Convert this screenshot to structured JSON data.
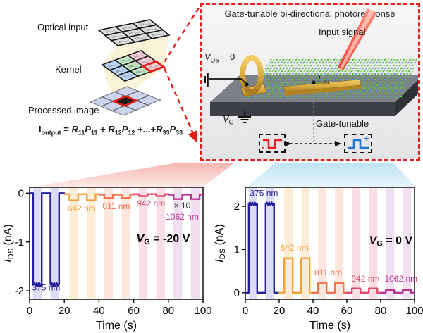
{
  "colors": {
    "accent_red": "#e3211a",
    "gold": "#d9a93e",
    "substrate_top": "#7c8088",
    "substrate_front": "#3c3f45",
    "wedge_pink": "#f5a9a4",
    "wedge_blue": "#b7e0f2",
    "beam_red": "#ee3224"
  },
  "conv": {
    "labels": {
      "optical_input": "Optical input",
      "kernel": "Kernel",
      "processed_image": "Processed image"
    },
    "equation": [
      [
        "n",
        "I"
      ],
      [
        "s",
        "output"
      ],
      [
        "n",
        " = "
      ],
      [
        "bi",
        "R"
      ],
      [
        "s",
        "11"
      ],
      [
        "bi",
        "P"
      ],
      [
        "s",
        "11"
      ],
      [
        "n",
        " + "
      ],
      [
        "bi",
        "R"
      ],
      [
        "s",
        "12"
      ],
      [
        "bi",
        "P"
      ],
      [
        "s",
        "12"
      ],
      [
        "n",
        " +...+"
      ],
      [
        "bi",
        "R"
      ],
      [
        "s",
        "33"
      ],
      [
        "bi",
        "P"
      ],
      [
        "s",
        "33"
      ]
    ],
    "grids": {
      "optical": {
        "cells": [
          [
            "P₁₁",
            "P₁₂",
            "P₁₃"
          ],
          [
            "P₂₁",
            "P₂₂",
            "P₂₃"
          ],
          [
            "P₃₁",
            "P₃₂",
            "P₃₃"
          ]
        ],
        "fill": "#dcdcdc",
        "text": "#6f6f6f"
      },
      "kernel": {
        "cells": [
          [
            "R₁₁",
            "R₁₂",
            "R₁₃"
          ],
          [
            "R₂₁",
            "R₂₂",
            "R₂₃"
          ],
          [
            "R₃₁",
            "R₃₂",
            "R₃₃"
          ]
        ],
        "col_fills": [
          "#b9d5f3",
          "#c2e5c1",
          "#f6cdd9"
        ],
        "text": "#6f6f6f",
        "highlight_cell": [
          2,
          2
        ],
        "highlight_color": "#e3211a"
      },
      "processed": {
        "fill": "#cdd5ee",
        "center_fill": "#1c1c1c",
        "center_stroke": "#e3211a"
      }
    }
  },
  "device_box": {
    "title": "Gate-tunable bi-directional photoresponse",
    "input_signal": "Input signal",
    "vds": {
      "sym": "V",
      "sub": "DS",
      "rest": " = 0"
    },
    "ids": {
      "sym": "I",
      "sub": "DS",
      "rest": ""
    },
    "vg": {
      "sym": "V",
      "sub": "G",
      "rest": ""
    },
    "gate_tunable": "Gate-tunable",
    "pulse_negative_sign": "-",
    "pulse_positive_sign": "+",
    "pulse_negative_color": "#e8211d",
    "pulse_positive_color": "#1e78d2"
  },
  "chart_data": [
    {
      "type": "line",
      "panel": "left",
      "xlabel": "Time (s)",
      "ylabel": {
        "sym": "I",
        "sub": "DS",
        "rest": " (nA)"
      },
      "gate": {
        "sym": "V",
        "sub": "G",
        "rest": " = -20 V",
        "pos": [
          77,
          -1.0
        ]
      },
      "xlim": [
        0,
        100
      ],
      "ylim": [
        -2.17,
        0.12
      ],
      "xticks": [
        0,
        20,
        40,
        60,
        80,
        100
      ],
      "yticks": [
        0,
        -1,
        -2
      ],
      "series": [
        {
          "name": "375 nm",
          "color": "#23209e",
          "stripe": "#dddcf6",
          "window": [
            0,
            20
          ],
          "pulses": [
            [
              2,
              7
            ],
            [
              12,
              17
            ]
          ],
          "base": 0,
          "peak": -1.87,
          "noise": 0.035,
          "label_pos": [
            9.5,
            -1.99
          ]
        },
        {
          "name": "642 nm",
          "color": "#f8a13b",
          "stripe": "#fdecd6",
          "window": [
            20,
            40
          ],
          "pulses": [
            [
              23,
              28
            ],
            [
              33,
              38
            ]
          ],
          "base": -0.02,
          "peak": -0.15,
          "label_pos": [
            30,
            -0.37
          ]
        },
        {
          "name": "811 nm",
          "color": "#f3734c",
          "stripe": "#fde6dd",
          "window": [
            40,
            60
          ],
          "pulses": [
            [
              43,
              48
            ],
            [
              53,
              58
            ]
          ],
          "base": -0.03,
          "peak": -0.1,
          "label_pos": [
            50,
            -0.33
          ]
        },
        {
          "name": "942 nm",
          "color": "#dc4a6e",
          "stripe": "#f9dee5",
          "window": [
            60,
            80
          ],
          "pulses": [
            [
              63,
              68
            ],
            [
              73,
              78
            ]
          ],
          "base": -0.02,
          "peak": -0.06,
          "label_pos": [
            70,
            -0.27
          ]
        },
        {
          "name": "1062 nm",
          "color": "#bb3391",
          "stripe": "#f1dff2",
          "window": [
            80,
            100
          ],
          "pulses": [
            [
              83,
              88
            ],
            [
              93,
              98
            ]
          ],
          "base": -0.03,
          "peak": -0.12,
          "label_pos": [
            88,
            -0.54
          ],
          "note": "× 10",
          "note_pos": [
            88,
            -0.31
          ],
          "note_color": "#333333"
        }
      ]
    },
    {
      "type": "line",
      "panel": "right",
      "xlabel": "Time (s)",
      "ylabel": {
        "sym": "I",
        "sub": "DS",
        "rest": " (nA)"
      },
      "gate": {
        "sym": "V",
        "sub": "G",
        "rest": " = 0 V",
        "pos": [
          86,
          1.13
        ]
      },
      "xlim": [
        0,
        100
      ],
      "ylim": [
        -0.15,
        2.44
      ],
      "xticks": [
        0,
        20,
        40,
        60,
        80,
        100
      ],
      "yticks": [
        0,
        1,
        2
      ],
      "series": [
        {
          "name": "375 nm",
          "color": "#23209e",
          "stripe": "#dddcf6",
          "window": [
            0,
            20
          ],
          "pulses": [
            [
              2,
              7
            ],
            [
              12,
              17
            ]
          ],
          "base": 0,
          "peak": 2.06,
          "noise": 0.03,
          "label_pos": [
            11,
            2.24
          ]
        },
        {
          "name": "642 nm",
          "color": "#f8a13b",
          "stripe": "#fdecd6",
          "window": [
            20,
            40
          ],
          "pulses": [
            [
              23,
              28
            ],
            [
              33,
              38
            ]
          ],
          "base": 0,
          "peak": 0.8,
          "label_pos": [
            29,
            0.97
          ]
        },
        {
          "name": "811 nm",
          "color": "#f3734c",
          "stripe": "#fde6dd",
          "window": [
            40,
            60
          ],
          "pulses": [
            [
              43,
              48
            ],
            [
              53,
              58
            ]
          ],
          "base": 0,
          "peak": 0.23,
          "label_pos": [
            49,
            0.4
          ]
        },
        {
          "name": "942 nm",
          "color": "#dc4a6e",
          "stripe": "#f9dee5",
          "window": [
            60,
            80
          ],
          "pulses": [
            [
              63,
              68
            ],
            [
              73,
              78
            ]
          ],
          "base": 0,
          "peak": 0.1,
          "label_pos": [
            71,
            0.26
          ]
        },
        {
          "name": "1062 nm",
          "color": "#bb3391",
          "stripe": "#f1dff2",
          "window": [
            80,
            100
          ],
          "pulses": [
            [
              83,
              88
            ],
            [
              93,
              98
            ]
          ],
          "base": 0,
          "peak": 0.06,
          "label_pos": [
            92,
            0.26
          ]
        }
      ]
    }
  ]
}
